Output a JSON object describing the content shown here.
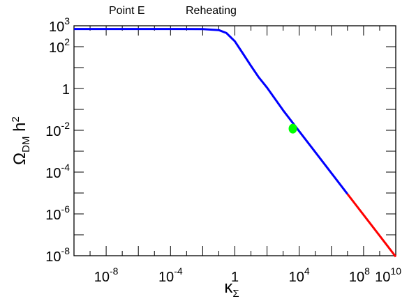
{
  "chart_data": {
    "type": "line",
    "title": "",
    "annotations": [
      "Point E",
      "Reheating"
    ],
    "xlabel": {
      "base": "κ",
      "sub": "Σ"
    },
    "ylabel": {
      "pre": "Ω",
      "sub": "DM",
      "mid": " h",
      "sup": "2"
    },
    "x_scale": "log",
    "y_scale": "log",
    "xlim": [
      1e-10,
      10000000000.0
    ],
    "ylim": [
      1e-08,
      1000.0
    ],
    "grid": false,
    "x_tick_labels": [
      {
        "value": 1e-08,
        "base": "10",
        "exp": "-8"
      },
      {
        "value": 0.0001,
        "base": "10",
        "exp": "-4"
      },
      {
        "value": 1,
        "base": "1",
        "exp": ""
      },
      {
        "value": 10000.0,
        "base": "10",
        "exp": "4"
      },
      {
        "value": 100000000.0,
        "base": "10",
        "exp": "8"
      },
      {
        "value": 10000000000.0,
        "base": "10",
        "exp": "10"
      }
    ],
    "y_tick_labels": [
      {
        "value": 1000.0,
        "base": "10",
        "exp": "3"
      },
      {
        "value": 100.0,
        "base": "10",
        "exp": "2"
      },
      {
        "value": 1,
        "base": "1",
        "exp": ""
      },
      {
        "value": 0.01,
        "base": "10",
        "exp": "-2"
      },
      {
        "value": 0.0001,
        "base": "10",
        "exp": "-4"
      },
      {
        "value": 1e-06,
        "base": "10",
        "exp": "-6"
      },
      {
        "value": 1e-08,
        "base": "10",
        "exp": "-8"
      }
    ],
    "series": [
      {
        "color": "#0000ff",
        "x": [
          1e-10,
          1e-08,
          1e-06,
          0.0001,
          0.01,
          0.1,
          0.3,
          1,
          3,
          10,
          30,
          100,
          1000,
          10000.0,
          100000.0,
          1000000.0,
          10000000.0
        ],
        "y": [
          700,
          700,
          700,
          700,
          690,
          620,
          450,
          180,
          50,
          12,
          3.5,
          1.1,
          0.09,
          0.009,
          0.0009,
          9e-05,
          9e-06
        ]
      },
      {
        "color": "#ff0000",
        "x": [
          10000000.0,
          100000000.0,
          1000000000.0,
          10000000000.0
        ],
        "y": [
          9e-06,
          9e-07,
          9e-08,
          9e-09
        ]
      }
    ],
    "marker": {
      "x": 4000,
      "y": 0.012,
      "color": "#00ff00"
    }
  }
}
